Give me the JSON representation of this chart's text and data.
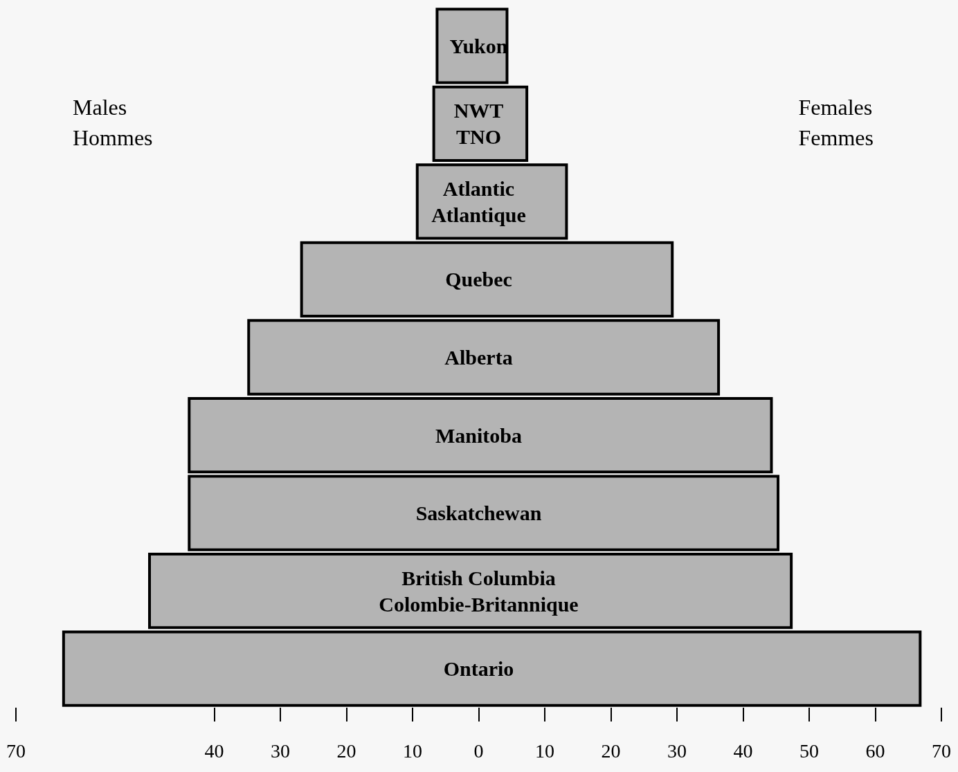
{
  "chart_data": {
    "type": "bar",
    "orientation": "horizontal",
    "categories": [
      "Yukon",
      "NWT\nTNO",
      "Atlantic\nAtlantique",
      "Quebec",
      "Alberta",
      "Manitoba",
      "Saskatchewan",
      "British Columbia\nColombie-Britannique",
      "Ontario"
    ],
    "base": [
      -6.5,
      -7,
      -9.5,
      -27,
      -35,
      -44,
      -44,
      -50,
      -63
    ],
    "values": [
      11,
      14.5,
      23,
      56.5,
      71.5,
      88.5,
      89.5,
      97.5,
      130
    ],
    "color": "#b4b4b4",
    "xlim": [
      -70,
      70
    ],
    "xticks": [
      {
        "value": -70,
        "label": "70"
      },
      {
        "value": -40,
        "label": "40"
      },
      {
        "value": -30,
        "label": "30"
      },
      {
        "value": -20,
        "label": "20"
      },
      {
        "value": -10,
        "label": "10"
      },
      0,
      10,
      20,
      30,
      40,
      50,
      60,
      70
    ],
    "annotations": [
      "Males\nHommes",
      "Females\nFemmes"
    ],
    "grid": false
  }
}
